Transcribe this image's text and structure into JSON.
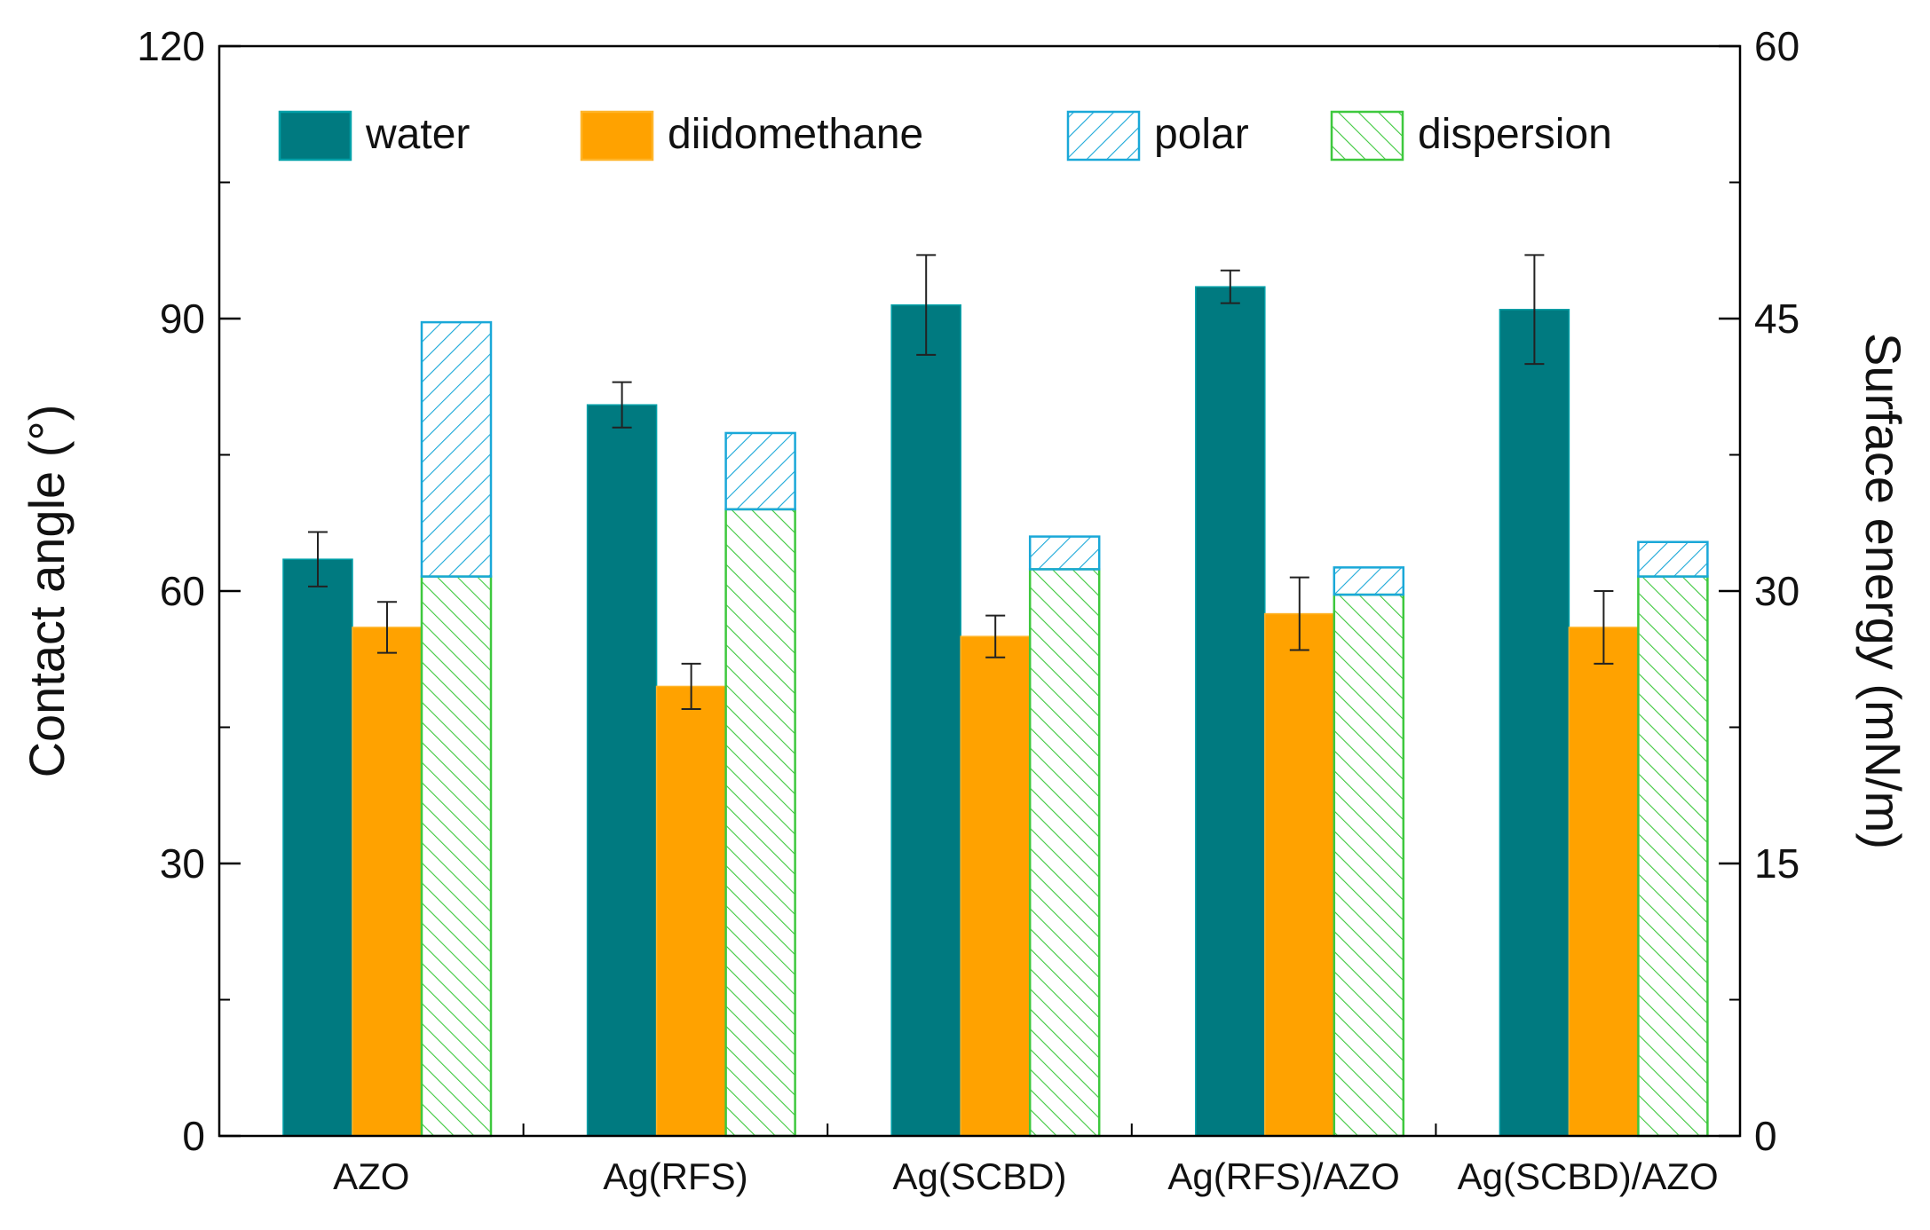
{
  "chart_data": {
    "type": "bar",
    "title": "",
    "xlabel": "",
    "ylabel": "Contact angle (°)",
    "y2label": "Surface energy (mN/m)",
    "ylim": [
      0,
      120
    ],
    "y2lim": [
      0,
      60
    ],
    "yticks": [
      "0",
      "30",
      "60",
      "90",
      "120"
    ],
    "y2ticks": [
      "0",
      "15",
      "30",
      "45",
      "60"
    ],
    "categories": [
      "AZO",
      "Ag(RFS)",
      "Ag(SCBD)",
      "Ag(RFS)/AZO",
      "Ag(SCBD)/AZO"
    ],
    "legend_position": "top",
    "series": [
      {
        "name": "water",
        "axis": "left",
        "color": "#007a80",
        "values": [
          63.5,
          80.5,
          91.5,
          93.5,
          91.0
        ],
        "errors": [
          3.0,
          2.5,
          5.5,
          1.8,
          6.0
        ]
      },
      {
        "name": "diidomethane",
        "axis": "left",
        "color": "#ffa200",
        "values": [
          56.0,
          49.5,
          55.0,
          57.5,
          56.0
        ],
        "errors": [
          2.8,
          2.5,
          2.3,
          4.0,
          4.0
        ]
      }
    ],
    "stacked_series": [
      {
        "name": "dispersion",
        "axis": "right",
        "color": "#3ec83e",
        "pattern": "diagonal-hatch",
        "values": [
          30.8,
          34.5,
          31.2,
          29.8,
          30.8
        ]
      },
      {
        "name": "polar",
        "axis": "right",
        "color": "#1aa8d8",
        "pattern": "diagonal-hatch",
        "values": [
          14.0,
          4.2,
          1.8,
          1.5,
          1.9
        ]
      }
    ],
    "legend": [
      "water",
      "diidomethane",
      "polar",
      "dispersion"
    ]
  }
}
